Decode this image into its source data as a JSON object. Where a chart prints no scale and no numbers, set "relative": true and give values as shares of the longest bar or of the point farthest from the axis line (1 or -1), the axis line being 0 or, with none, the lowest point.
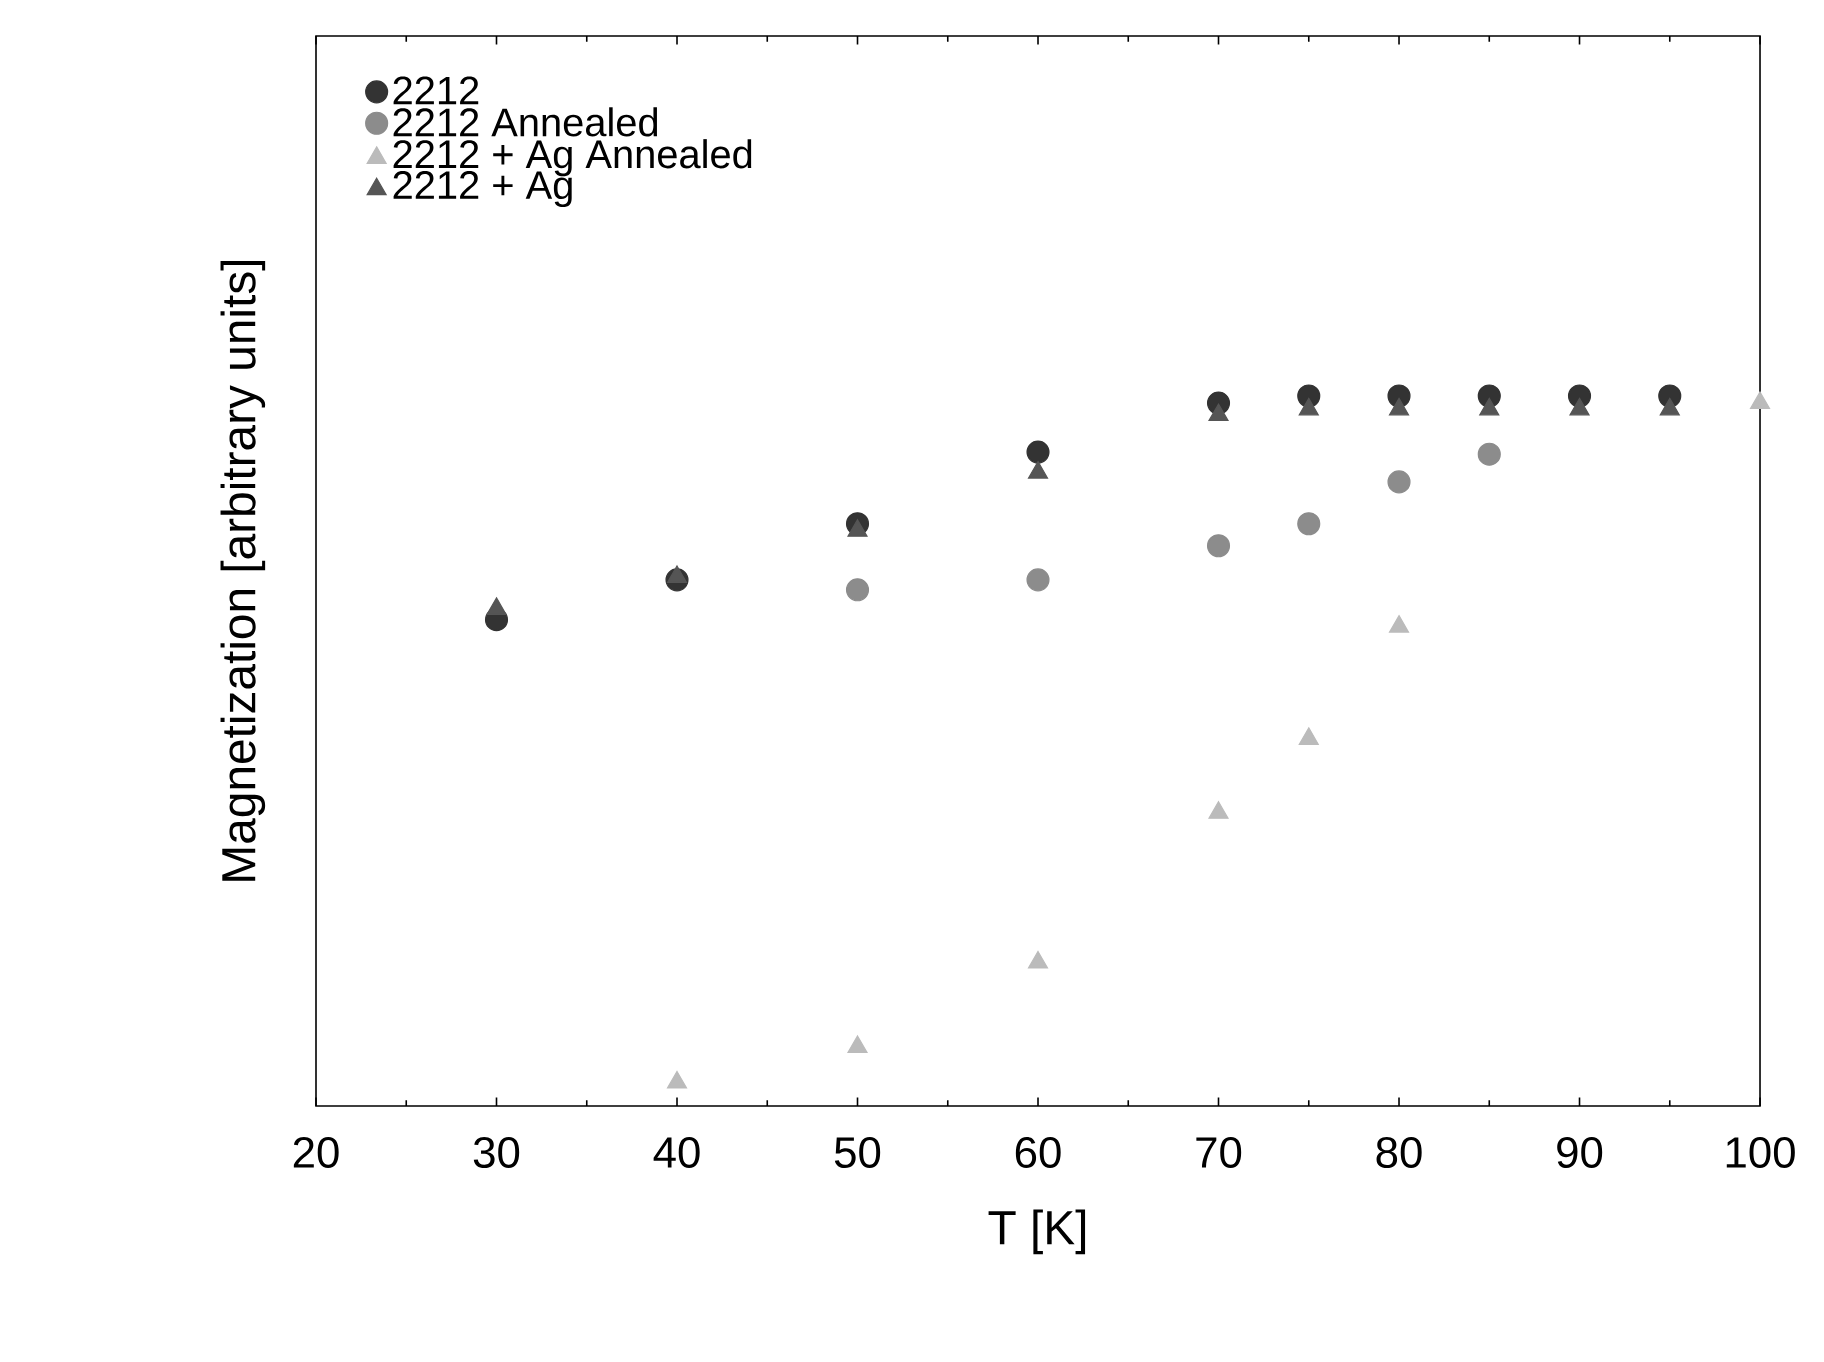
{
  "chart_data": {
    "type": "scatter",
    "xlabel": "T [K]",
    "ylabel": "Magnetization [arbitrary units]",
    "relative": true,
    "xlim": [
      20,
      100
    ],
    "xticks": [
      20,
      30,
      40,
      50,
      60,
      70,
      80,
      90,
      100
    ],
    "tick_labels": "x",
    "legend": "top left",
    "grid": false,
    "series": [
      {
        "name": "2212",
        "color": "#333333",
        "marker": "circle",
        "x": [
          30,
          40,
          50,
          60,
          70,
          75,
          80,
          85,
          90,
          95
        ],
        "values": [
          0.685,
          0.741,
          0.82,
          0.921,
          0.99,
          1,
          1,
          1,
          1,
          1
        ]
      },
      {
        "name": "2212 Annealed",
        "color": "#8c8c8c",
        "marker": "circle",
        "x": [
          50,
          60,
          70,
          75,
          80,
          85
        ],
        "values": [
          0.727,
          0.741,
          0.789,
          0.82,
          0.879,
          0.918
        ]
      },
      {
        "name": "2212 + Ag Annealed",
        "color": "#bbbbbb",
        "marker": "triangle",
        "x": [
          40,
          50,
          60,
          70,
          75,
          80,
          100
        ],
        "values": [
          0.037,
          0.087,
          0.206,
          0.417,
          0.521,
          0.679,
          0.994
        ]
      },
      {
        "name": "2212 + Ag",
        "color": "#555555",
        "marker": "triangle",
        "x": [
          30,
          40,
          50,
          60,
          70,
          75,
          80,
          85,
          90,
          95
        ],
        "values": [
          0.704,
          0.749,
          0.814,
          0.896,
          0.977,
          0.985,
          0.985,
          0.985,
          0.985,
          0.985
        ]
      }
    ]
  }
}
